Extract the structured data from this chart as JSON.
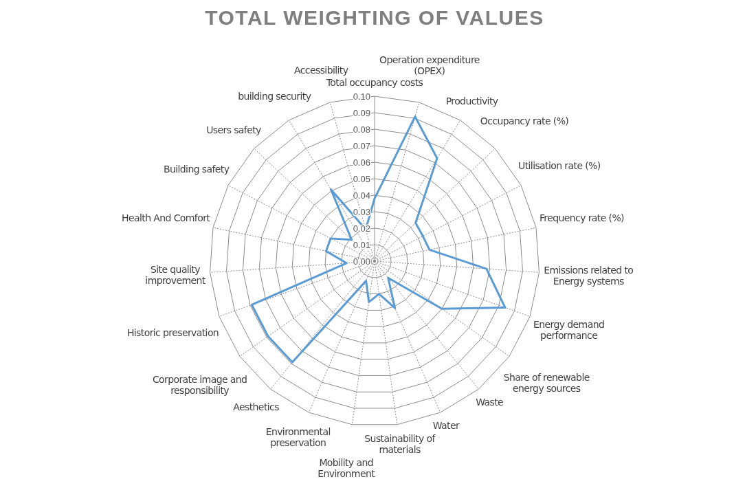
{
  "chart_data": {
    "type": "radar",
    "title": "TOTAL WEIGHTING OF VALUES",
    "categories": [
      "Total occupancy costs",
      "Operation expenditure (OPEX)",
      "Productivity",
      "Occupancy rate (%)",
      "Utilisation rate (%)",
      "Frequency rate (%)",
      "Emissions related to Energy systems",
      "Energy demand performance",
      "Share of renewable energy sources",
      "Waste",
      "Water",
      "Sustainability of materials",
      "Mobility and Environment",
      "Environmental preservation",
      "Aesthetics",
      "Corporate image and responsibility",
      "Historic preservation",
      "Site quality improvement",
      "Health And Comfort",
      "Building safety",
      "Users safety",
      "building security",
      "Accessibility"
    ],
    "series": [
      {
        "color": "#5b9bd5",
        "values": [
          0.038,
          0.091,
          0.073,
          0.034,
          0.033,
          0.034,
          0.068,
          0.084,
          0.05,
          0.013,
          0.031,
          0.02,
          0.025,
          0.013,
          0.079,
          0.079,
          0.079,
          0.017,
          0.03,
          0.03,
          0.019,
          0.051,
          0.02
        ]
      }
    ],
    "ylim": [
      0,
      0.1
    ],
    "yticks": [
      {
        "value": 0,
        "label": "0.00"
      },
      {
        "value": 0.01,
        "label": "0.01"
      },
      {
        "value": 0.02,
        "label": "0.02"
      },
      {
        "value": 0.03,
        "label": "0.03"
      },
      {
        "value": 0.04,
        "label": "0.04"
      },
      {
        "value": 0.05,
        "label": "0.05"
      },
      {
        "value": 0.06,
        "label": "0.06"
      },
      {
        "value": 0.07,
        "label": "0.07"
      },
      {
        "value": 0.08,
        "label": "0.08"
      },
      {
        "value": 0.09,
        "label": "0.09"
      },
      {
        "value": 0.1,
        "label": "0.10"
      }
    ],
    "grid": true,
    "marker": "none",
    "line_style": "solid"
  }
}
